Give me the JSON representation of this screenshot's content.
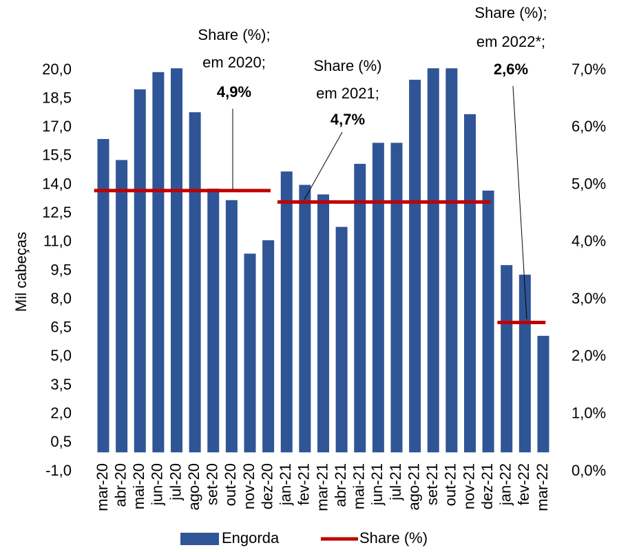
{
  "chart_data": {
    "type": "bar",
    "y_label": "Mil cabeças",
    "categories": [
      "mar-20",
      "abr-20",
      "mai-20",
      "jun-20",
      "jul-20",
      "ago-20",
      "set-20",
      "out-20",
      "nov-20",
      "dez-20",
      "jan-21",
      "fev-21",
      "mar-21",
      "abr-21",
      "mai-21",
      "jun-21",
      "jul-21",
      "ago-21",
      "set-21",
      "out-21",
      "nov-21",
      "dez-21",
      "jan-22",
      "fev-22",
      "mar-22"
    ],
    "series": [
      {
        "name": "Engorda",
        "type": "bar",
        "color": "#2f5597",
        "values": [
          16.4,
          15.3,
          19.0,
          19.9,
          20.1,
          17.8,
          13.8,
          13.2,
          10.4,
          11.1,
          14.7,
          14.0,
          13.5,
          11.8,
          15.1,
          16.2,
          16.2,
          19.5,
          20.1,
          20.1,
          17.7,
          13.7,
          9.8,
          9.3,
          6.1
        ]
      },
      {
        "name": "Share (%)",
        "type": "line",
        "axis": "y2",
        "color": "#c00000",
        "values": [
          4.9,
          4.9,
          4.9,
          4.9,
          4.9,
          4.9,
          4.9,
          4.9,
          4.9,
          4.9,
          4.7,
          4.7,
          4.7,
          4.7,
          4.7,
          4.7,
          4.7,
          4.7,
          4.7,
          4.7,
          4.7,
          4.7,
          2.6,
          2.6,
          2.6
        ]
      }
    ],
    "ylim": [
      -1.0,
      20.0
    ],
    "yticks": [
      {
        "value": -1.0,
        "label": "-1,0"
      },
      {
        "value": 0.5,
        "label": "0,5"
      },
      {
        "value": 2.0,
        "label": "2,0"
      },
      {
        "value": 3.5,
        "label": "3,5"
      },
      {
        "value": 5.0,
        "label": "5,0"
      },
      {
        "value": 6.5,
        "label": "6,5"
      },
      {
        "value": 8.0,
        "label": "8,0"
      },
      {
        "value": 9.5,
        "label": "9,5"
      },
      {
        "value": 11.0,
        "label": "11,0"
      },
      {
        "value": 12.5,
        "label": "12,5"
      },
      {
        "value": 14.0,
        "label": "14,0"
      },
      {
        "value": 15.5,
        "label": "15,5"
      },
      {
        "value": 17.0,
        "label": "17,0"
      },
      {
        "value": 18.5,
        "label": "18,5"
      },
      {
        "value": 20.0,
        "label": "20,0"
      }
    ],
    "y2lim": [
      0,
      7
    ],
    "y2ticks": [
      {
        "value": 0,
        "label": "0,0%"
      },
      {
        "value": 1,
        "label": "1,0%"
      },
      {
        "value": 2,
        "label": "2,0%"
      },
      {
        "value": 3,
        "label": "3,0%"
      },
      {
        "value": 4,
        "label": "4,0%"
      },
      {
        "value": 5,
        "label": "5,0%"
      },
      {
        "value": 6,
        "label": "6,0%"
      },
      {
        "value": 7,
        "label": "7,0%"
      }
    ],
    "annotations": [
      {
        "text": [
          "Share (%);",
          "em 2020;"
        ],
        "label": "4,9%"
      },
      {
        "text": [
          "Share (%)",
          "em 2021;"
        ],
        "label": "4,7%"
      },
      {
        "text": [
          "Share (%);",
          "em 2022*;"
        ],
        "label": "2,6%"
      }
    ],
    "legend": "bottom"
  }
}
